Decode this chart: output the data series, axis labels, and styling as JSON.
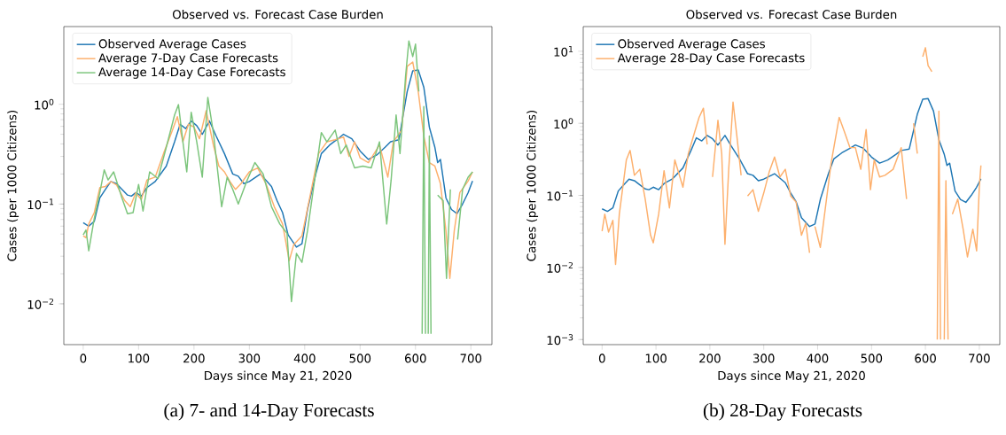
{
  "chart_data": [
    {
      "type": "line",
      "title": "Observed vs. Forecast Case Burden",
      "xlabel": "Days since May 21, 2020",
      "ylabel": "Cases (per 1000 Citizens)",
      "log": "y",
      "legend": "top left",
      "line_style": "solid",
      "xlim": [
        -35,
        738
      ],
      "xticks": [
        0,
        100,
        200,
        300,
        400,
        500,
        600,
        700
      ],
      "ylim": [
        0.0039,
        6
      ],
      "yticks": [
        {
          "value": 0.01,
          "label": "10$^{−2}$"
        },
        {
          "value": 0.1,
          "label": "10$^{−1}$"
        },
        {
          "value": 1,
          "label": "10$^{0}$"
        }
      ],
      "annotations": [
        "(a) 7- and 14-Day Forecasts"
      ],
      "series": [
        {
          "name": "Observed Average Cases",
          "color": "#1f77b4",
          "x": [
            0,
            10,
            20,
            30,
            40,
            50,
            60,
            70,
            80,
            87,
            95,
            105,
            115,
            130,
            150,
            165,
            175,
            185,
            195,
            205,
            215,
            228,
            240,
            255,
            270,
            280,
            290,
            300,
            320,
            340,
            350,
            360,
            370,
            385,
            395,
            405,
            420,
            430,
            445,
            460,
            470,
            485,
            500,
            515,
            530,
            545,
            555,
            570,
            585,
            595,
            605,
            615,
            625,
            635,
            640,
            645,
            655,
            665,
            675,
            685,
            695,
            703
          ],
          "values": [
            0.065,
            0.06,
            0.067,
            0.115,
            0.14,
            0.168,
            0.16,
            0.14,
            0.123,
            0.12,
            0.13,
            0.12,
            0.146,
            0.168,
            0.24,
            0.42,
            0.63,
            0.57,
            0.68,
            0.61,
            0.5,
            0.68,
            0.48,
            0.32,
            0.2,
            0.19,
            0.16,
            0.168,
            0.2,
            0.15,
            0.108,
            0.082,
            0.049,
            0.037,
            0.04,
            0.088,
            0.2,
            0.32,
            0.39,
            0.45,
            0.5,
            0.45,
            0.34,
            0.28,
            0.31,
            0.37,
            0.42,
            0.44,
            1.34,
            2.16,
            2.2,
            1.48,
            0.59,
            0.37,
            0.26,
            0.28,
            0.115,
            0.088,
            0.08,
            0.1,
            0.13,
            0.17
          ]
        },
        {
          "name": "Average 7-Day Case Forecasts",
          "color": "#fdb06d",
          "x": [
            0,
            5,
            10,
            20,
            30,
            40,
            50,
            60,
            75,
            85,
            95,
            105,
            115,
            130,
            145,
            160,
            170,
            180,
            190,
            200,
            210,
            222,
            235,
            245,
            255,
            265,
            275,
            285,
            300,
            315,
            330,
            345,
            360,
            372,
            380,
            395,
            410,
            425,
            440,
            455,
            470,
            480,
            490,
            500,
            515,
            535,
            550,
            560,
            575,
            585,
            595,
            605,
            615,
            625,
            635,
            645,
            655,
            662,
            670,
            680,
            695,
            703
          ],
          "values": [
            0.048,
            0.046,
            0.063,
            0.082,
            0.146,
            0.15,
            0.168,
            0.156,
            0.108,
            0.094,
            0.13,
            0.111,
            0.174,
            0.186,
            0.32,
            0.53,
            0.75,
            0.42,
            0.63,
            0.59,
            0.45,
            0.86,
            0.39,
            0.24,
            0.21,
            0.168,
            0.14,
            0.16,
            0.21,
            0.23,
            0.16,
            0.094,
            0.063,
            0.027,
            0.039,
            0.048,
            0.123,
            0.32,
            0.42,
            0.44,
            0.47,
            0.3,
            0.42,
            0.29,
            0.26,
            0.39,
            0.186,
            0.42,
            0.55,
            2.4,
            2.65,
            1.34,
            0.48,
            0.26,
            0.24,
            0.16,
            0.054,
            0.018,
            0.054,
            0.13,
            0.17,
            0.21
          ]
        },
        {
          "name": "Average 14-Day Case Forecasts",
          "color": "#7cc57c",
          "x": [
            0,
            5,
            10,
            20,
            30,
            38,
            45,
            55,
            70,
            80,
            90,
            100,
            108,
            120,
            135,
            150,
            165,
            172,
            180,
            187,
            195,
            205,
            215,
            225,
            235,
            250,
            260,
            270,
            280,
            295,
            310,
            325,
            340,
            355,
            368,
            376,
            385,
            395,
            405,
            420,
            430,
            440,
            455,
            465,
            475,
            490,
            505,
            520,
            535,
            548,
            556,
            565,
            572,
            582,
            588,
            595,
            600,
            606,
            610,
            612,
            615,
            618,
            620,
            623,
            625,
            628,
            632,
            640,
            650,
            656,
            663,
            670,
            676,
            685,
            695,
            703
          ],
          "values": [
            0.049,
            0.055,
            0.034,
            0.072,
            0.13,
            0.22,
            0.174,
            0.21,
            0.115,
            0.08,
            0.082,
            0.157,
            0.085,
            0.21,
            0.18,
            0.37,
            0.78,
            0.99,
            0.42,
            0.21,
            0.83,
            0.42,
            0.186,
            1.17,
            0.52,
            0.094,
            0.186,
            0.14,
            0.1,
            0.168,
            0.26,
            0.2,
            0.094,
            0.063,
            0.051,
            0.0105,
            0.032,
            0.026,
            0.054,
            0.21,
            0.52,
            0.42,
            0.55,
            0.32,
            0.39,
            0.23,
            0.24,
            0.23,
            0.42,
            0.063,
            0.174,
            0.78,
            0.32,
            1.88,
            4.3,
            3.0,
            4.0,
            1.34,
            null,
            0.005,
            0.95,
            0.005,
            null,
            0.005,
            0.48,
            0.005,
            null,
            0.123,
            0.108,
            0.018,
            0.14,
            null,
            0.044,
            0.14,
            0.186,
            0.21
          ]
        }
      ]
    },
    {
      "type": "line",
      "title": "Observed vs. Forecast Case Burden",
      "xlabel": "Days since May 21, 2020",
      "ylabel": "Cases (per 1000 Citizens)",
      "log": "y",
      "legend": "top left",
      "line_style": "solid",
      "xlim": [
        -35,
        738
      ],
      "xticks": [
        0,
        100,
        200,
        300,
        400,
        500,
        600,
        700
      ],
      "ylim": [
        0.00085,
        22
      ],
      "yticks": [
        {
          "value": 0.001,
          "label": "10$^{−3}$"
        },
        {
          "value": 0.01,
          "label": "10$^{−2}$"
        },
        {
          "value": 0.1,
          "label": "10$^{−1}$"
        },
        {
          "value": 1,
          "label": "10$^{0}$"
        },
        {
          "value": 10,
          "label": "10$^{1}$"
        }
      ],
      "annotations": [
        "(b) 28-Day Forecasts"
      ],
      "series": [
        {
          "name": "Observed Average Cases",
          "color": "#1f77b4",
          "x": [
            0,
            10,
            20,
            30,
            40,
            50,
            60,
            70,
            80,
            87,
            95,
            105,
            115,
            130,
            150,
            165,
            175,
            185,
            195,
            205,
            215,
            228,
            240,
            255,
            270,
            280,
            290,
            300,
            320,
            340,
            350,
            360,
            370,
            385,
            395,
            405,
            420,
            430,
            445,
            460,
            470,
            485,
            500,
            515,
            530,
            545,
            555,
            570,
            585,
            595,
            605,
            615,
            625,
            635,
            640,
            645,
            655,
            665,
            675,
            685,
            695,
            703
          ],
          "values": [
            0.065,
            0.06,
            0.067,
            0.115,
            0.14,
            0.168,
            0.16,
            0.14,
            0.123,
            0.12,
            0.13,
            0.12,
            0.146,
            0.168,
            0.24,
            0.42,
            0.63,
            0.57,
            0.68,
            0.61,
            0.5,
            0.68,
            0.48,
            0.32,
            0.2,
            0.19,
            0.16,
            0.168,
            0.2,
            0.15,
            0.108,
            0.082,
            0.049,
            0.037,
            0.04,
            0.088,
            0.2,
            0.32,
            0.39,
            0.45,
            0.5,
            0.45,
            0.34,
            0.28,
            0.31,
            0.37,
            0.42,
            0.44,
            1.34,
            2.16,
            2.2,
            1.48,
            0.59,
            0.37,
            0.26,
            0.28,
            0.115,
            0.088,
            0.08,
            0.1,
            0.13,
            0.17
          ]
        },
        {
          "name": "Average 28-Day Case Forecasts",
          "color": "#fdb06d",
          "x": [
            0,
            5,
            12,
            20,
            25,
            32,
            45,
            52,
            60,
            70,
            80,
            90,
            95,
            105,
            115,
            125,
            135,
            150,
            160,
            170,
            180,
            188,
            195,
            198,
            205,
            215,
            222,
            228,
            235,
            243,
            250,
            258,
            263,
            270,
            280,
            290,
            300,
            310,
            320,
            330,
            340,
            350,
            360,
            370,
            378,
            385,
            390,
            395,
            405,
            415,
            425,
            440,
            450,
            460,
            470,
            480,
            490,
            498,
            505,
            515,
            525,
            540,
            555,
            565,
            570,
            578,
            585,
            590,
            595,
            600,
            605,
            612,
            618,
            622,
            625,
            628,
            630,
            635,
            638,
            642,
            645,
            650,
            660,
            670,
            678,
            688,
            695,
            700,
            703
          ],
          "values": [
            0.032,
            0.055,
            0.031,
            0.045,
            0.011,
            0.055,
            0.31,
            0.42,
            0.19,
            0.23,
            0.089,
            0.028,
            0.022,
            0.055,
            0.22,
            0.067,
            0.31,
            0.13,
            0.38,
            0.68,
            1.21,
            1.62,
            0.51,
            null,
            0.18,
            1.1,
            0.38,
            0.021,
            0.23,
            1.97,
            0.68,
            0.19,
            null,
            0.098,
            0.12,
            0.06,
            0.108,
            0.21,
            0.34,
            0.18,
            0.23,
            0.098,
            0.081,
            0.028,
            0.041,
            0.016,
            null,
            0.037,
            0.019,
            0.073,
            0.28,
            1.21,
            0.75,
            0.46,
            0.46,
            0.23,
            0.82,
            0.12,
            0.31,
            0.18,
            0.19,
            0.23,
            0.46,
            0.089,
            null,
            1.0,
            0.38,
            null,
            8.4,
            11.2,
            6.3,
            5.2,
            null,
            0.001,
            1.47,
            0.001,
            null,
            0.001,
            0.16,
            0.001,
            null,
            0.055,
            0.089,
            0.034,
            0.014,
            0.034,
            0.017,
            0.13,
            0.26
          ]
        }
      ]
    }
  ]
}
